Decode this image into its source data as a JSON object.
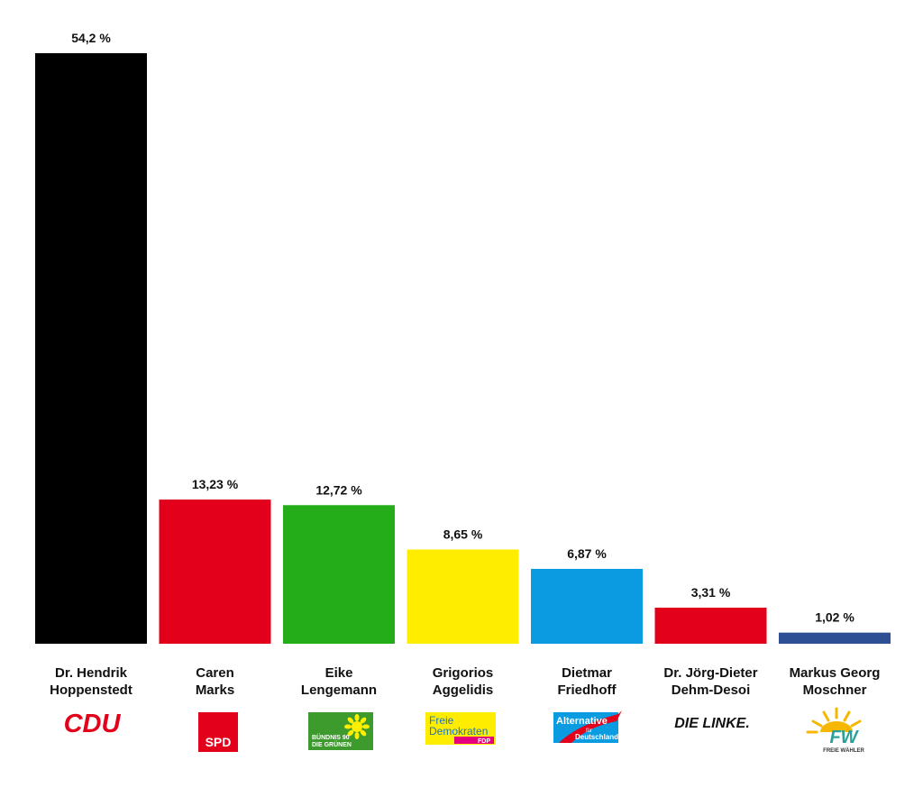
{
  "chart_data": {
    "type": "bar",
    "title": "",
    "xlabel": "",
    "ylabel": "",
    "ylim": [
      0,
      54.2
    ],
    "grid": false,
    "categories": [
      "Dr. Hendrik Hoppenstedt",
      "Caren Marks",
      "Eike Lengemann",
      "Grigorios Aggelidis",
      "Dietmar Friedhoff",
      "Dr. Jörg-Dieter Dehm-Desoi",
      "Markus Georg Moschner"
    ],
    "name_lines": [
      [
        "Dr. Hendrik",
        "Hoppenstedt"
      ],
      [
        "Caren",
        "Marks"
      ],
      [
        "Eike",
        "Lengemann"
      ],
      [
        "Grigorios",
        "Aggelidis"
      ],
      [
        "Dietmar",
        "Friedhoff"
      ],
      [
        "Dr. Jörg-Dieter",
        "Dehm-Desoi"
      ],
      [
        "Markus Georg",
        "Moschner"
      ]
    ],
    "values": [
      54.2,
      13.23,
      12.72,
      8.65,
      6.87,
      3.31,
      1.02
    ],
    "value_labels": [
      "54,2 %",
      "13,23 %",
      "12,72 %",
      "8,65 %",
      "6,87 %",
      "3,31 %",
      "1,02 %"
    ],
    "colors": [
      "#000000",
      "#e2001a",
      "#24ad19",
      "#ffed00",
      "#0a9be1",
      "#e2001a",
      "#2e4f94"
    ]
  },
  "logos": [
    {
      "party": "CDU",
      "icon": "cdu-logo-icon",
      "text": "CDU",
      "color": "#e2001a"
    },
    {
      "party": "SPD",
      "icon": "spd-logo-icon",
      "text": "SPD",
      "color": "#e2001a"
    },
    {
      "party": "GRÜNE",
      "icon": "gruene-logo-icon",
      "text1": "BÜNDNIS 90",
      "text2": "DIE GRÜNEN",
      "color": "#3c9b2c"
    },
    {
      "party": "FDP",
      "icon": "fdp-logo-icon",
      "text1": "Freie",
      "text2": "Demokraten",
      "text3": "FDP",
      "color": "#ffed00"
    },
    {
      "party": "AfD",
      "icon": "afd-logo-icon",
      "text1": "Alternative",
      "text2": "für",
      "text3": "Deutschland",
      "color": "#0a9be1"
    },
    {
      "party": "DIE LINKE",
      "icon": "linke-logo-icon",
      "text": "DIE LINKE.",
      "color": "#111111"
    },
    {
      "party": "FREIE WÄHLER",
      "icon": "fw-logo-icon",
      "text1": "FW",
      "text2": "FREIE WÄHLER",
      "color": "#2aa198"
    }
  ]
}
